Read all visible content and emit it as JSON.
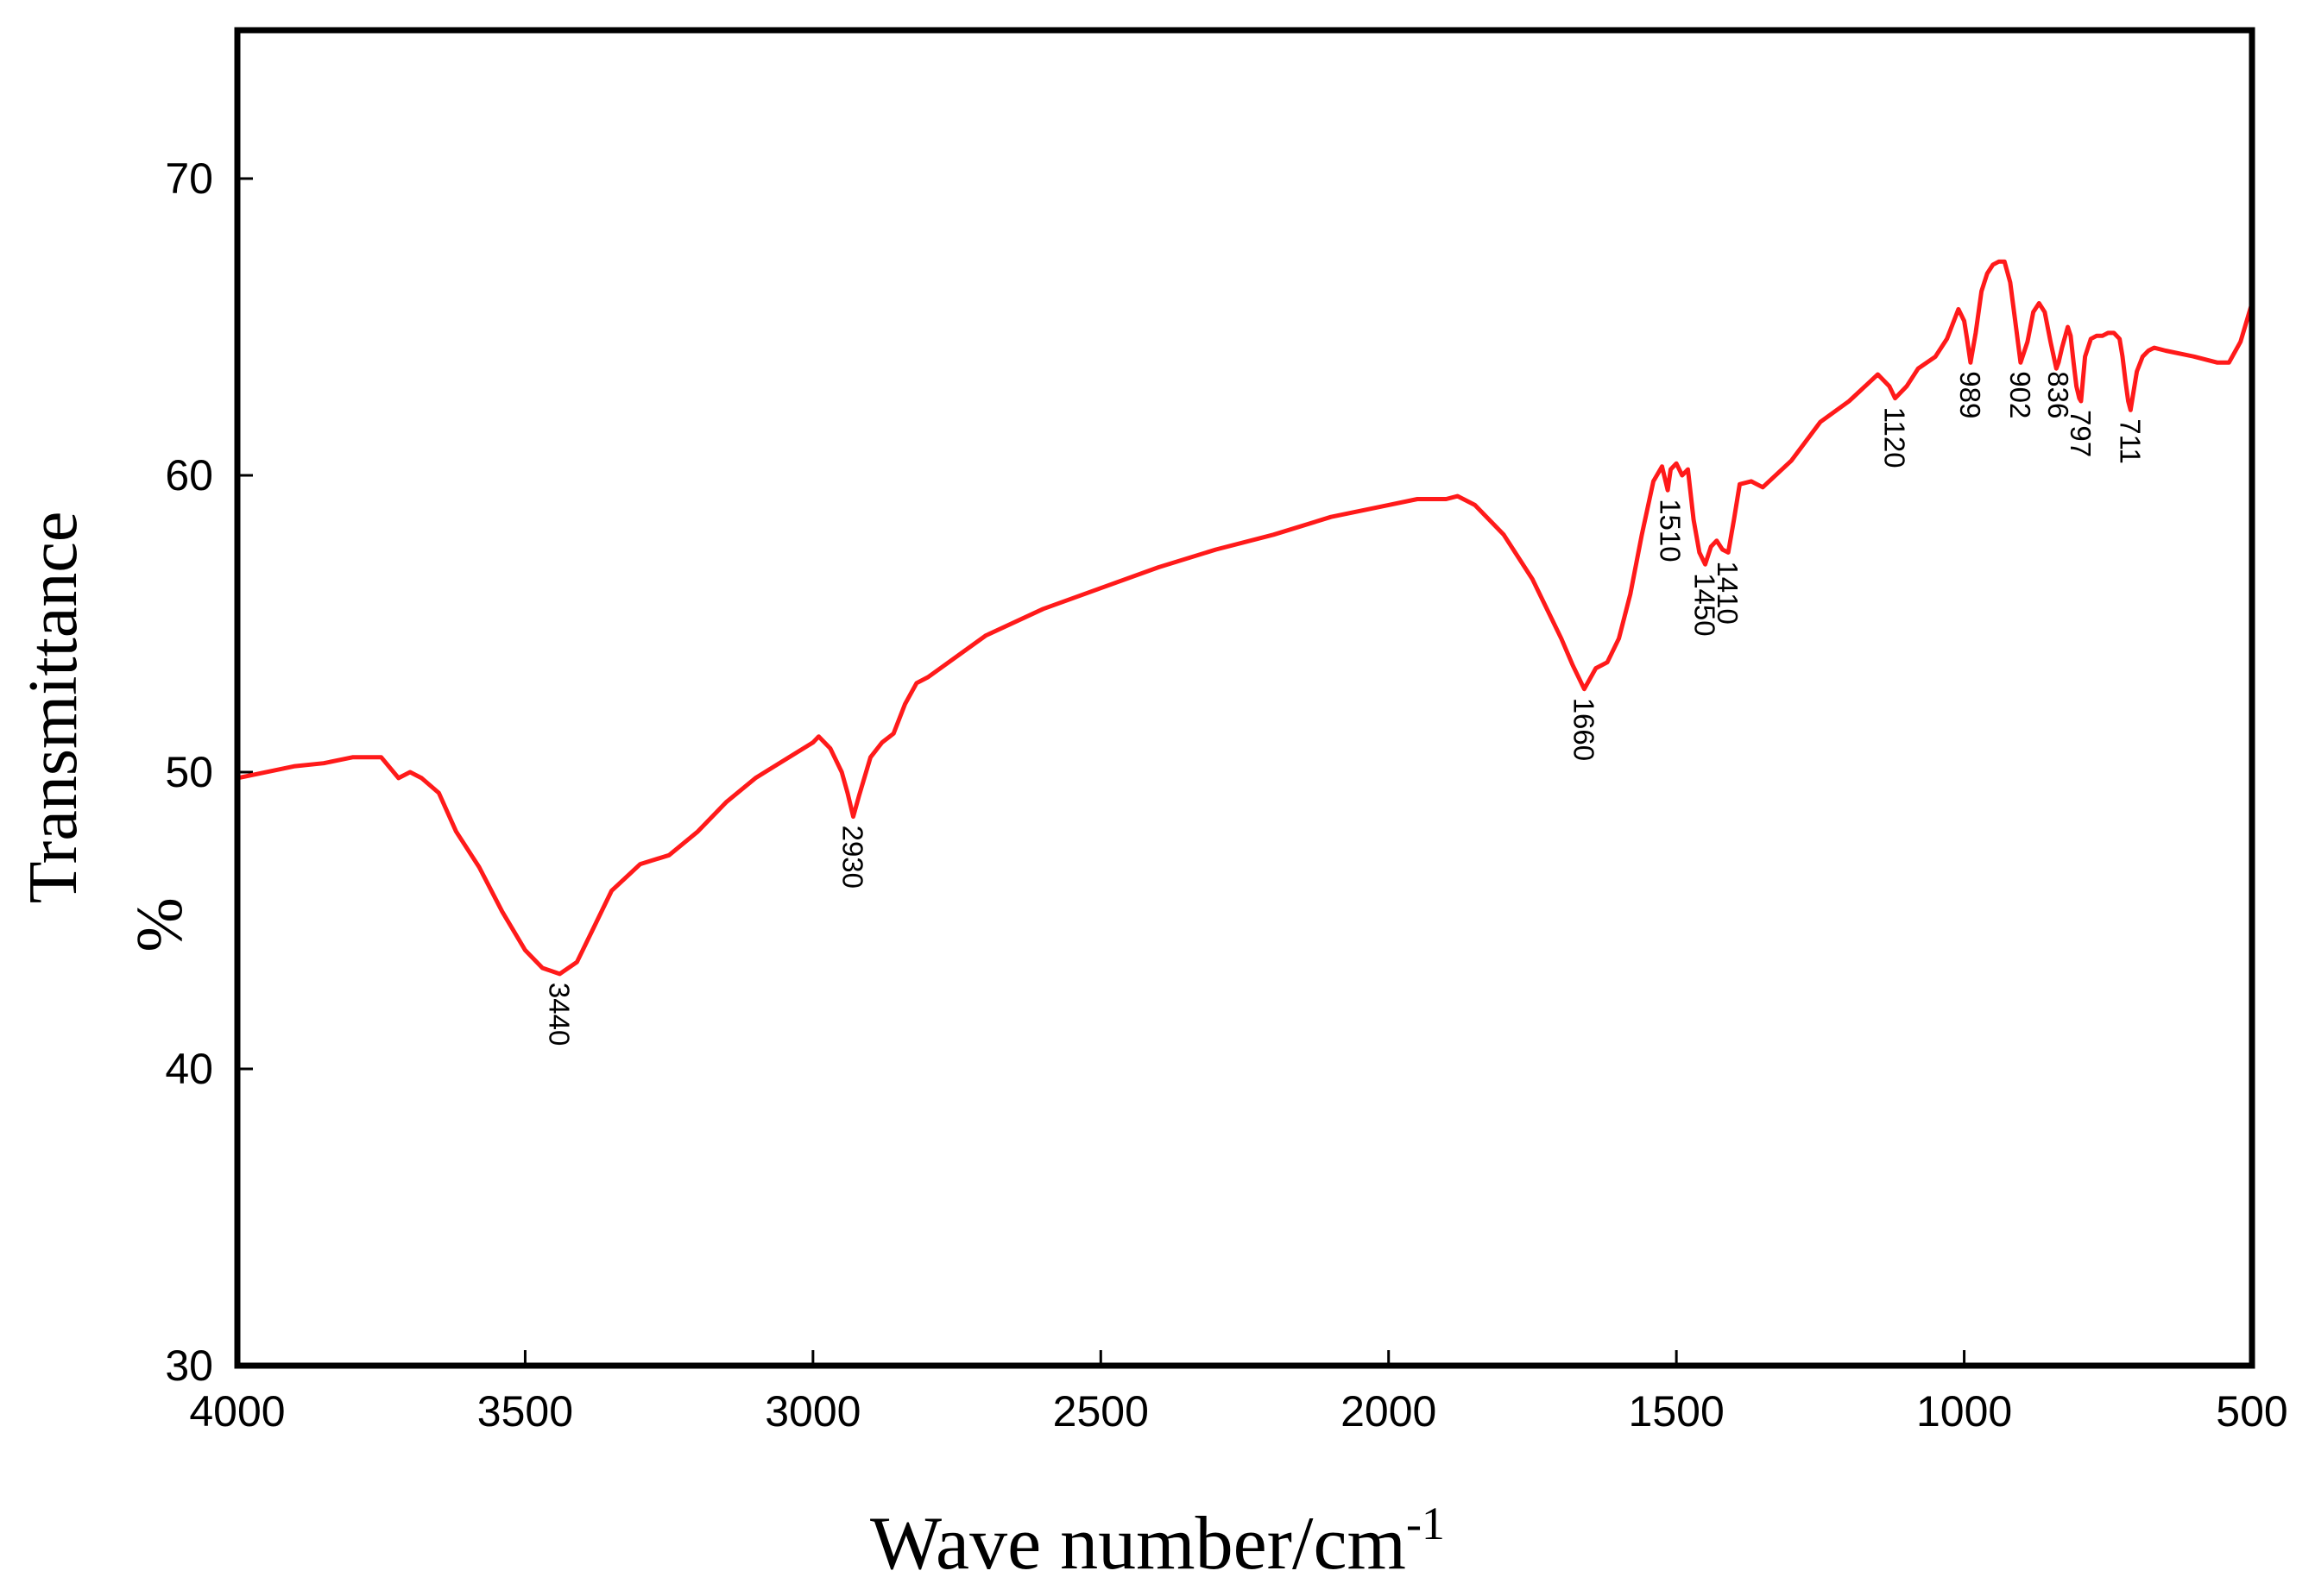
{
  "chart_data": {
    "type": "line",
    "title": "",
    "xlabel": "Wave number/cm",
    "xlabel_superscript": "-1",
    "ylabel_line1": "Transmittance",
    "ylabel_line2": "%",
    "xlim": [
      4000,
      500
    ],
    "ylim": [
      30,
      75
    ],
    "x_ticks": [
      4000,
      3500,
      3000,
      2500,
      2000,
      1500,
      1000,
      500
    ],
    "x_tick_labels": [
      "4000",
      "3500",
      "3000",
      "2500",
      "2000",
      "1500",
      "1000",
      "500"
    ],
    "y_ticks": [
      30,
      40,
      50,
      60,
      70
    ],
    "y_tick_labels": [
      "30",
      "40",
      "50",
      "60",
      "70"
    ],
    "grid": false,
    "series": [
      {
        "name": "FTIR spectrum",
        "color": "#ff1a1a",
        "x": [
          4000,
          3900,
          3850,
          3800,
          3750,
          3720,
          3700,
          3680,
          3650,
          3620,
          3580,
          3540,
          3500,
          3470,
          3440,
          3410,
          3380,
          3350,
          3300,
          3250,
          3200,
          3150,
          3100,
          3050,
          3000,
          2990,
          2970,
          2950,
          2940,
          2930,
          2920,
          2900,
          2880,
          2860,
          2840,
          2820,
          2800,
          2700,
          2600,
          2500,
          2400,
          2300,
          2200,
          2100,
          2000,
          1950,
          1900,
          1880,
          1850,
          1800,
          1750,
          1700,
          1680,
          1660,
          1640,
          1620,
          1600,
          1580,
          1560,
          1540,
          1525,
          1515,
          1510,
          1500,
          1490,
          1480,
          1470,
          1460,
          1450,
          1440,
          1430,
          1420,
          1410,
          1400,
          1390,
          1370,
          1350,
          1300,
          1250,
          1200,
          1150,
          1130,
          1120,
          1100,
          1080,
          1050,
          1030,
          1010,
          1000,
          995,
          989,
          980,
          970,
          960,
          950,
          940,
          930,
          920,
          910,
          902,
          890,
          880,
          870,
          860,
          850,
          840,
          836,
          830,
          820,
          815,
          810,
          805,
          800,
          797,
          790,
          780,
          770,
          760,
          750,
          740,
          730,
          725,
          720,
          715,
          711,
          700,
          690,
          680,
          670,
          650,
          600,
          560,
          540,
          520,
          500
        ],
        "y": [
          49.8,
          50.2,
          50.3,
          50.5,
          50.5,
          49.8,
          50.0,
          49.8,
          49.3,
          48.0,
          46.8,
          45.3,
          44.0,
          43.4,
          43.2,
          43.6,
          44.8,
          46.0,
          46.9,
          47.2,
          48.0,
          49.0,
          49.8,
          50.4,
          51.0,
          51.2,
          50.8,
          50.0,
          49.3,
          48.5,
          49.2,
          50.5,
          51.0,
          51.3,
          52.3,
          53.0,
          53.2,
          54.6,
          55.5,
          56.2,
          56.9,
          57.5,
          58.0,
          58.6,
          59.0,
          59.2,
          59.2,
          59.3,
          59.0,
          58.0,
          56.5,
          54.5,
          53.6,
          52.8,
          53.5,
          53.7,
          54.5,
          56.0,
          58.0,
          59.8,
          60.3,
          59.5,
          60.2,
          60.4,
          60.0,
          60.2,
          58.5,
          57.4,
          57.0,
          57.6,
          57.8,
          57.5,
          57.4,
          58.5,
          59.7,
          59.8,
          59.6,
          60.5,
          61.8,
          62.5,
          63.4,
          63.0,
          62.6,
          63.0,
          63.6,
          64.0,
          64.6,
          65.6,
          65.2,
          64.6,
          63.8,
          64.8,
          66.2,
          66.8,
          67.1,
          67.2,
          67.2,
          66.5,
          65.0,
          63.8,
          64.5,
          65.5,
          65.8,
          65.5,
          64.5,
          63.6,
          63.8,
          64.3,
          65.0,
          64.7,
          63.8,
          63.0,
          62.6,
          62.5,
          64.0,
          64.6,
          64.7,
          64.7,
          64.8,
          64.8,
          64.6,
          64.0,
          63.2,
          62.5,
          62.2,
          63.5,
          64.0,
          64.2,
          64.3,
          64.2,
          64.0,
          63.8,
          63.8,
          64.5,
          65.8
        ]
      }
    ],
    "annotations": [
      {
        "label": "3440",
        "x": 3440,
        "y": 43.2
      },
      {
        "label": "2930",
        "x": 2930,
        "y": 48.5
      },
      {
        "label": "1660",
        "x": 1660,
        "y": 52.8
      },
      {
        "label": "1510",
        "x": 1510,
        "y": 59.5
      },
      {
        "label": "1450",
        "x": 1450,
        "y": 57.0
      },
      {
        "label": "1410",
        "x": 1410,
        "y": 57.4
      },
      {
        "label": "1120",
        "x": 1120,
        "y": 62.6
      },
      {
        "label": "989",
        "x": 989,
        "y": 63.8
      },
      {
        "label": "902",
        "x": 902,
        "y": 63.8
      },
      {
        "label": "836",
        "x": 836,
        "y": 63.8
      },
      {
        "label": "797",
        "x": 797,
        "y": 62.5
      },
      {
        "label": "711",
        "x": 711,
        "y": 62.2
      }
    ]
  }
}
